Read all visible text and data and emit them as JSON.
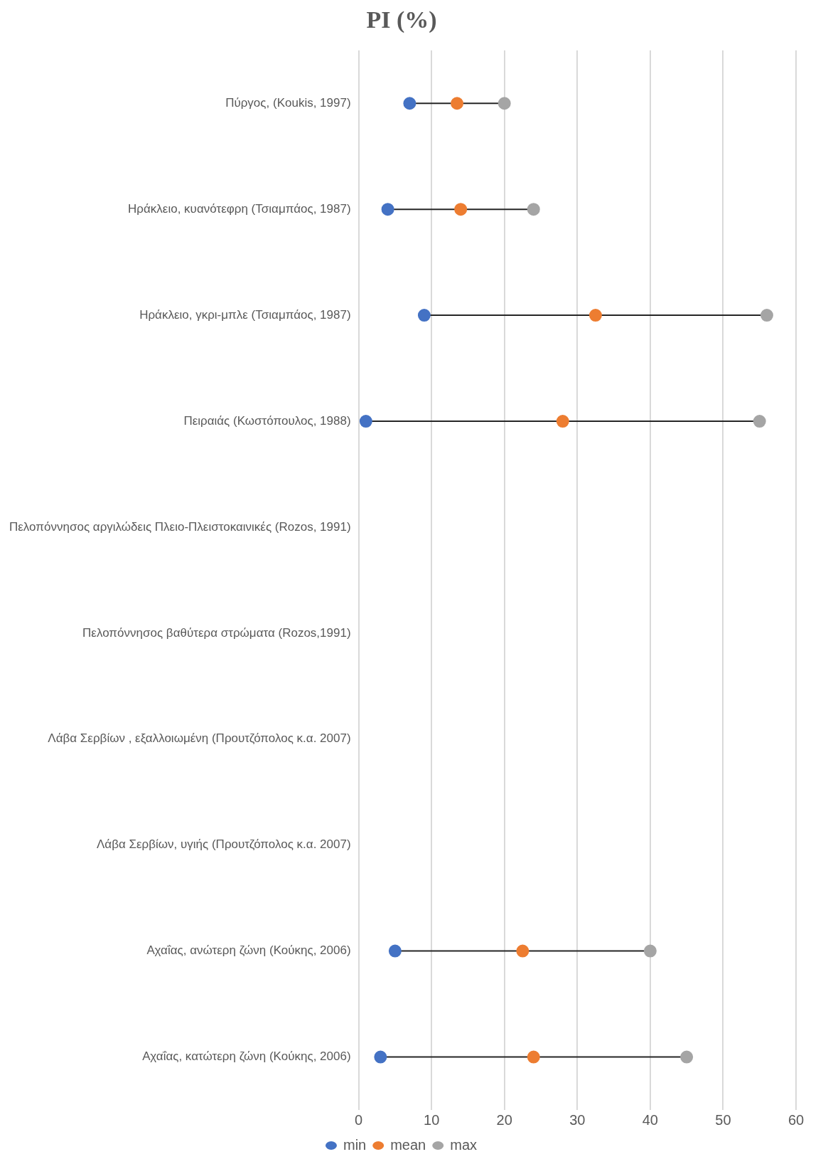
{
  "chart_data": {
    "type": "scatter",
    "title": "PI (%)",
    "orientation": "horizontal",
    "categories": [
      "Πύργος, (Koukis, 1997)",
      "Ηράκλειο, κυανότεφρη (Τσιαμπάος, 1987)",
      "Ηράκλειο, γκρι-μπλε (Τσιαμπάος, 1987)",
      "Πειραιάς (Κωστόπουλος, 1988)",
      "Πελοπόννησος αργιλώδεις Πλειο-Πλειστοκαινικές (Rozos, 1991)",
      "Πελοπόννησος βαθύτερα στρώματα (Rozos,1991)",
      "Λάβα Σερβίων , εξαλλοιωμένη (Προυτζόπολος κ.α. 2007)",
      "Λάβα Σερβίων, υγιής (Προυτζόπολος κ.α. 2007)",
      "Αχαΐας, ανώτερη ζώνη (Κούκης, 2006)",
      "Αχαΐας, κατώτερη ζώνη (Κούκης, 2006)"
    ],
    "series": [
      {
        "name": "min",
        "color": "#4472c4",
        "values": [
          7,
          4,
          9,
          1,
          null,
          null,
          null,
          null,
          5,
          3
        ]
      },
      {
        "name": "mean",
        "color": "#ed7d31",
        "values": [
          13.5,
          14,
          32.5,
          28,
          null,
          null,
          null,
          null,
          22.5,
          24
        ]
      },
      {
        "name": "max",
        "color": "#a5a5a5",
        "values": [
          20,
          24,
          56,
          55,
          null,
          null,
          null,
          null,
          40,
          45
        ]
      }
    ],
    "xlim": [
      0,
      60
    ],
    "xticks": [
      0,
      10,
      20,
      30,
      40,
      50,
      60
    ],
    "grid": "x",
    "legend": "bottom",
    "marker": "circle"
  }
}
